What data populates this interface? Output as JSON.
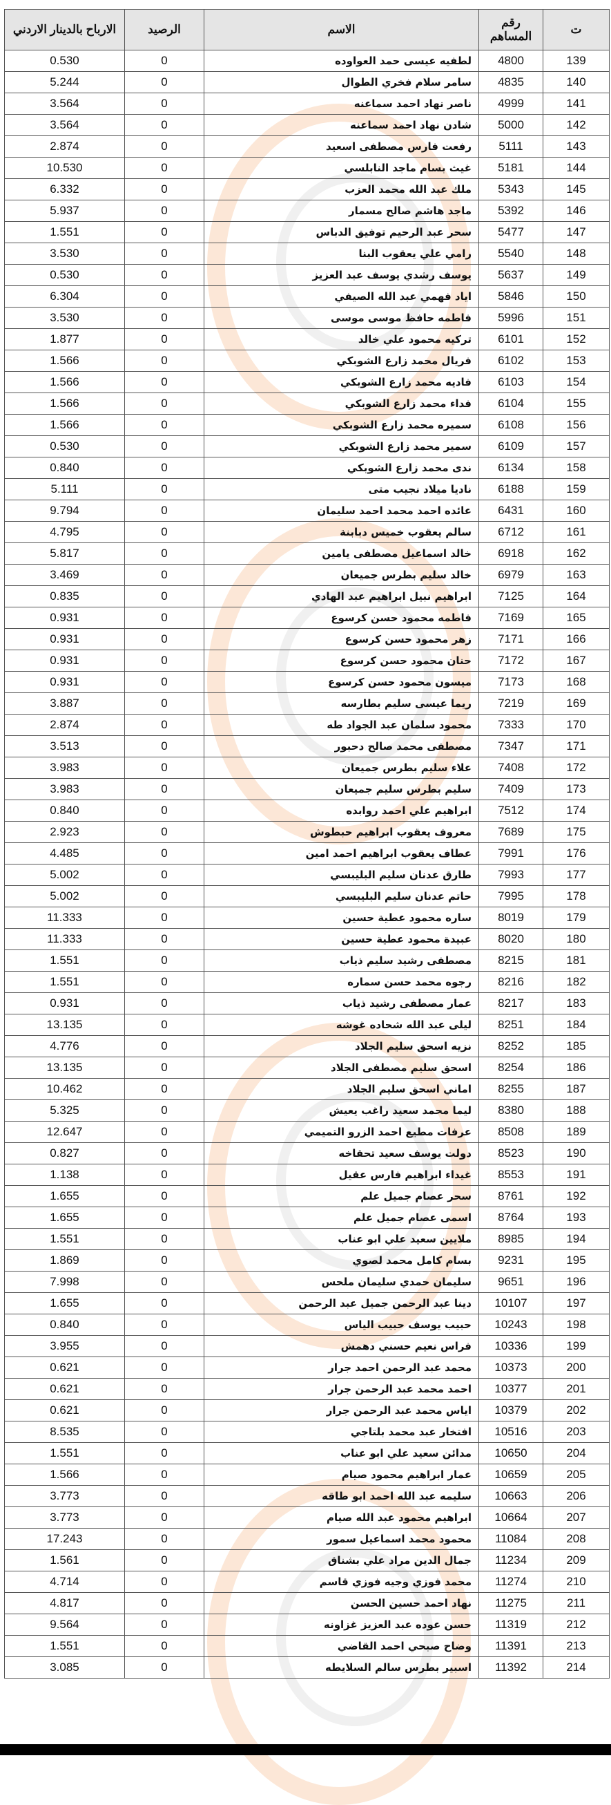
{
  "header": {
    "col_no": "ت",
    "col_shareholder_no": "رقم المساهم",
    "col_name": "الاسم",
    "col_balance": "الرصيد",
    "col_profit": "الارباح بالدينار الاردني"
  },
  "colors": {
    "header_bg": "#e1e1e1",
    "border": "#555555",
    "watermark_orange": "#f5aa6e"
  },
  "rows": [
    [
      "139",
      "4800",
      "لطفيه عيسى حمد العواوده",
      "0",
      "0.530"
    ],
    [
      "140",
      "4835",
      "سامر سلام فخري الطوال",
      "0",
      "5.244"
    ],
    [
      "141",
      "4999",
      "ناصر نهاد احمد سماعنه",
      "0",
      "3.564"
    ],
    [
      "142",
      "5000",
      "شادن نهاد احمد سماعنه",
      "0",
      "3.564"
    ],
    [
      "143",
      "5111",
      "رفعت فارس مصطفى اسعيد",
      "0",
      "2.874"
    ],
    [
      "144",
      "5181",
      "غيث بسام ماجد النابلسي",
      "0",
      "10.530"
    ],
    [
      "145",
      "5343",
      "ملك عبد الله محمد العزب",
      "0",
      "6.332"
    ],
    [
      "146",
      "5392",
      "ماجد هاشم صالح مسمار",
      "0",
      "5.937"
    ],
    [
      "147",
      "5477",
      "سحر عبد الرحيم توفيق الدباس",
      "0",
      "1.551"
    ],
    [
      "148",
      "5540",
      "رامي علي يعقوب البنا",
      "0",
      "3.530"
    ],
    [
      "149",
      "5637",
      "يوسف رشدي يوسف عبد العزيز",
      "0",
      "0.530"
    ],
    [
      "150",
      "5846",
      "اياد فهمي عبد الله الصيفي",
      "0",
      "6.304"
    ],
    [
      "151",
      "5996",
      "فاطمه حافظ موسى موسى",
      "0",
      "3.530"
    ],
    [
      "152",
      "6101",
      "تركيه محمود علي خالد",
      "0",
      "1.877"
    ],
    [
      "153",
      "6102",
      "فريال محمد زارع الشوبكي",
      "0",
      "1.566"
    ],
    [
      "154",
      "6103",
      "فاديه محمد زارع الشوبكي",
      "0",
      "1.566"
    ],
    [
      "155",
      "6104",
      "فداء محمد زارع الشوبكي",
      "0",
      "1.566"
    ],
    [
      "156",
      "6108",
      "سميره محمد زارع الشوبكي",
      "0",
      "1.566"
    ],
    [
      "157",
      "6109",
      "سمير محمد زارع الشوبكي",
      "0",
      "0.530"
    ],
    [
      "158",
      "6134",
      "ندى محمد زارع الشوبكي",
      "0",
      "0.840"
    ],
    [
      "159",
      "6188",
      "ناديا ميلاد نجيب متى",
      "0",
      "5.111"
    ],
    [
      "160",
      "6431",
      "عائده احمد محمد احمد سليمان",
      "0",
      "9.794"
    ],
    [
      "161",
      "6712",
      "سالم يعقوب خميس دبابنة",
      "0",
      "4.795"
    ],
    [
      "162",
      "6918",
      "خالد اسماعيل مصطفى يامين",
      "0",
      "5.817"
    ],
    [
      "163",
      "6979",
      "خالد سليم بطرس جميعان",
      "0",
      "3.469"
    ],
    [
      "164",
      "7125",
      "ابراهيم نبيل ابراهيم عبد الهادي",
      "0",
      "0.835"
    ],
    [
      "165",
      "7169",
      "فاطمه محمود حسن كرسوع",
      "0",
      "0.931"
    ],
    [
      "166",
      "7171",
      "زهر محمود حسن كرسوع",
      "0",
      "0.931"
    ],
    [
      "167",
      "7172",
      "حنان محمود حسن كرسوع",
      "0",
      "0.931"
    ],
    [
      "168",
      "7173",
      "ميسون محمود حسن كرسوع",
      "0",
      "0.931"
    ],
    [
      "169",
      "7219",
      "ريما عيسى سليم بطارسه",
      "0",
      "3.887"
    ],
    [
      "170",
      "7333",
      "محمود سلمان عبد الجواد طه",
      "0",
      "2.874"
    ],
    [
      "171",
      "7347",
      "مصطفى محمد صالح دحبور",
      "0",
      "3.513"
    ],
    [
      "172",
      "7408",
      "علاء سليم بطرس جميعان",
      "0",
      "3.983"
    ],
    [
      "173",
      "7409",
      "سليم بطرس سليم جميعان",
      "0",
      "3.983"
    ],
    [
      "174",
      "7512",
      "ابراهيم علي احمد روابده",
      "0",
      "0.840"
    ],
    [
      "175",
      "7689",
      "معروف يعقوب ابراهيم حبطوش",
      "0",
      "2.923"
    ],
    [
      "176",
      "7991",
      "عطاف يعقوب ابراهيم احمد امين",
      "0",
      "4.485"
    ],
    [
      "177",
      "7993",
      "طارق عدنان سليم البليبسي",
      "0",
      "5.002"
    ],
    [
      "178",
      "7995",
      "حاتم عدنان سليم البليبسي",
      "0",
      "5.002"
    ],
    [
      "179",
      "8019",
      "ساره محمود عطية حسين",
      "0",
      "11.333"
    ],
    [
      "180",
      "8020",
      "عبيدة محمود عطية حسين",
      "0",
      "11.333"
    ],
    [
      "181",
      "8215",
      "مصطفى رشيد سليم ذياب",
      "0",
      "1.551"
    ],
    [
      "182",
      "8216",
      "رجوه محمد حسن سماره",
      "0",
      "1.551"
    ],
    [
      "183",
      "8217",
      "عمار مصطفى رشيد ذياب",
      "0",
      "0.931"
    ],
    [
      "184",
      "8251",
      "ليلى عبد الله شحاده غوشه",
      "0",
      "13.135"
    ],
    [
      "185",
      "8252",
      "نزيه اسحق سليم الجلاد",
      "0",
      "4.776"
    ],
    [
      "186",
      "8254",
      "اسحق سليم مصطفى الجلاد",
      "0",
      "13.135"
    ],
    [
      "187",
      "8255",
      "اماني اسحق سليم الجلاد",
      "0",
      "10.462"
    ],
    [
      "188",
      "8380",
      "ليما محمد سعيد راغب يعيش",
      "0",
      "5.325"
    ],
    [
      "189",
      "8508",
      "عرفات مطيع احمد الزرو التميمي",
      "0",
      "12.647"
    ],
    [
      "190",
      "8523",
      "دولت يوسف سعيد تحقاخه",
      "0",
      "0.827"
    ],
    [
      "191",
      "8553",
      "غيداء ابراهيم فارس عقيل",
      "0",
      "1.138"
    ],
    [
      "192",
      "8761",
      "سحر عصام جميل علم",
      "0",
      "1.655"
    ],
    [
      "193",
      "8764",
      "اسمى عصام جميل علم",
      "0",
      "1.655"
    ],
    [
      "194",
      "8985",
      "ملايين سعيد علي ابو عناب",
      "0",
      "1.551"
    ],
    [
      "195",
      "9231",
      "بسام كامل محمد لصوي",
      "0",
      "1.869"
    ],
    [
      "196",
      "9651",
      "سليمان حمدي سليمان ملحس",
      "0",
      "7.998"
    ],
    [
      "197",
      "10107",
      "دينا عبد الرحمن جميل عبد الرحمن",
      "0",
      "1.655"
    ],
    [
      "198",
      "10243",
      "حبيب يوسف حبيب الياس",
      "0",
      "0.840"
    ],
    [
      "199",
      "10336",
      "فراس نعيم حسني دهمش",
      "0",
      "3.955"
    ],
    [
      "200",
      "10373",
      "محمد عبد الرحمن احمد جرار",
      "0",
      "0.621"
    ],
    [
      "201",
      "10377",
      "احمد محمد عبد الرحمن جرار",
      "0",
      "0.621"
    ],
    [
      "202",
      "10379",
      "اياس محمد عبد الرحمن جرار",
      "0",
      "0.621"
    ],
    [
      "203",
      "10516",
      "افتخار عبد محمد بلتاجي",
      "0",
      "8.535"
    ],
    [
      "204",
      "10650",
      "مدائن سعيد علي ابو عناب",
      "0",
      "1.551"
    ],
    [
      "205",
      "10659",
      "عمار ابراهيم محمود صيام",
      "0",
      "1.566"
    ],
    [
      "206",
      "10663",
      "سليمه عبد الله احمد ابو طاقه",
      "0",
      "3.773"
    ],
    [
      "207",
      "10664",
      "ابراهيم محمود عبد الله صيام",
      "0",
      "3.773"
    ],
    [
      "208",
      "11084",
      "محمود محمد اسماعيل سمور",
      "0",
      "17.243"
    ],
    [
      "209",
      "11234",
      "جمال الدين مراد علي بشناق",
      "0",
      "1.561"
    ],
    [
      "210",
      "11274",
      "محمد فوزي وجيه فوزي قاسم",
      "0",
      "4.714"
    ],
    [
      "211",
      "11275",
      "نهاد احمد حسين الحسن",
      "0",
      "4.817"
    ],
    [
      "212",
      "11319",
      "حسن عوده عبد العزيز غزاونه",
      "0",
      "9.564"
    ],
    [
      "213",
      "11391",
      "وضاح صبحي احمد القاضي",
      "0",
      "1.551"
    ],
    [
      "214",
      "11392",
      "اسبير بطرس سالم السلايطه",
      "0",
      "3.085"
    ]
  ]
}
